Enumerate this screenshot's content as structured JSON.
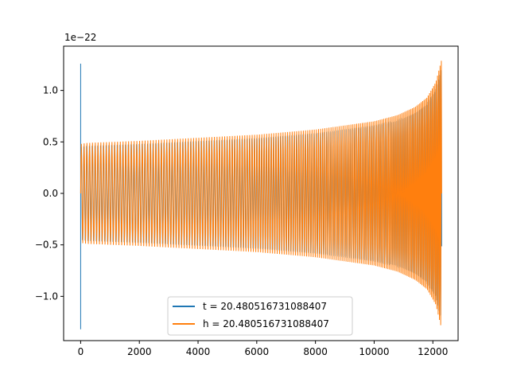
{
  "chart_data": {
    "type": "line",
    "title": "",
    "xlabel": "",
    "ylabel": "",
    "offset_text": "1e−22",
    "xlim": [
      -580,
      12860
    ],
    "ylim": [
      -1.43,
      1.43
    ],
    "xticks": [
      0,
      2000,
      4000,
      6000,
      8000,
      10000,
      12000
    ],
    "xtick_labels": [
      "0",
      "2000",
      "4000",
      "6000",
      "8000",
      "10000",
      "12000"
    ],
    "yticks": [
      -1.0,
      -0.5,
      0.0,
      0.5,
      1.0
    ],
    "ytick_labels": [
      "−1.0",
      "−0.5",
      "0.0",
      "0.5",
      "1.0"
    ],
    "grid": false,
    "legend_position": "lower center",
    "series": [
      {
        "name": "t = 20.480516731088407",
        "color": "#1f77b4",
        "description_points": {
          "x": [
            0,
            0,
            0,
            20,
            200,
            4000,
            8000,
            10000,
            11000,
            11800,
            12300
          ],
          "y_upper": [
            1.26,
            0.48,
            0.48,
            0.48,
            0.49,
            0.54,
            0.62,
            0.7,
            0.78,
            0.92,
            1.3
          ],
          "y_lower": [
            -1.32,
            -0.48,
            -0.48,
            -0.48,
            -0.49,
            -0.54,
            -0.62,
            -0.7,
            -0.78,
            -0.92,
            -1.32
          ]
        }
      },
      {
        "name": "h = 20.480516731088407",
        "color": "#ff7f0e",
        "envelope": {
          "x": [
            0,
            200,
            2000,
            4000,
            6000,
            8000,
            9000,
            10000,
            10800,
            11400,
            11800,
            12100,
            12300
          ],
          "y_upper": [
            0.48,
            0.49,
            0.51,
            0.54,
            0.57,
            0.62,
            0.66,
            0.7,
            0.76,
            0.84,
            0.93,
            1.08,
            1.3
          ],
          "y_lower": [
            -0.48,
            -0.49,
            -0.51,
            -0.54,
            -0.57,
            -0.62,
            -0.66,
            -0.7,
            -0.76,
            -0.84,
            -0.93,
            -1.08,
            -1.32
          ]
        }
      }
    ],
    "spike": {
      "x": 0,
      "y_max": 1.26,
      "y_min": -1.32
    }
  }
}
